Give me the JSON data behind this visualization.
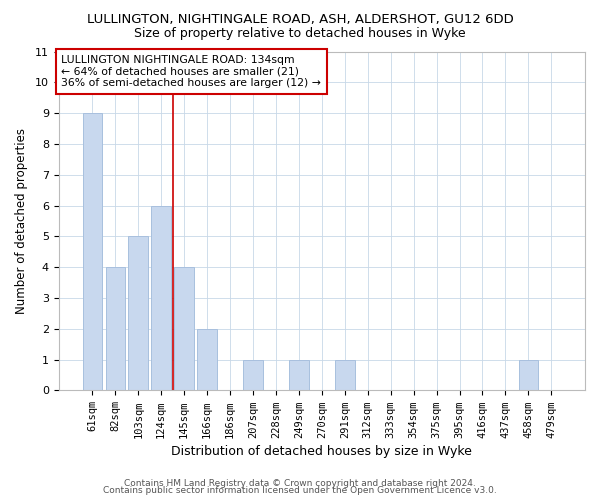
{
  "title": "LULLINGTON, NIGHTINGALE ROAD, ASH, ALDERSHOT, GU12 6DD",
  "subtitle": "Size of property relative to detached houses in Wyke",
  "xlabel": "Distribution of detached houses by size in Wyke",
  "ylabel": "Number of detached properties",
  "bar_labels": [
    "61sqm",
    "82sqm",
    "103sqm",
    "124sqm",
    "145sqm",
    "166sqm",
    "186sqm",
    "207sqm",
    "228sqm",
    "249sqm",
    "270sqm",
    "291sqm",
    "312sqm",
    "333sqm",
    "354sqm",
    "375sqm",
    "395sqm",
    "416sqm",
    "437sqm",
    "458sqm",
    "479sqm"
  ],
  "bar_values": [
    9,
    4,
    5,
    6,
    4,
    2,
    0,
    1,
    0,
    1,
    0,
    1,
    0,
    0,
    0,
    0,
    0,
    0,
    0,
    1,
    0
  ],
  "bar_color": "#c8d8ee",
  "bar_edge_color": "#a8c0de",
  "ylim": [
    0,
    11
  ],
  "yticks": [
    0,
    1,
    2,
    3,
    4,
    5,
    6,
    7,
    8,
    9,
    10,
    11
  ],
  "vline_x": 3.5,
  "vline_color": "#cc0000",
  "annotation_line1": "LULLINGTON NIGHTINGALE ROAD: 134sqm",
  "annotation_line2": "← 64% of detached houses are smaller (21)",
  "annotation_line3": "36% of semi-detached houses are larger (12) →",
  "footer1": "Contains HM Land Registry data © Crown copyright and database right 2024.",
  "footer2": "Contains public sector information licensed under the Open Government Licence v3.0.",
  "background_color": "#ffffff",
  "grid_color": "#c8d8e8"
}
